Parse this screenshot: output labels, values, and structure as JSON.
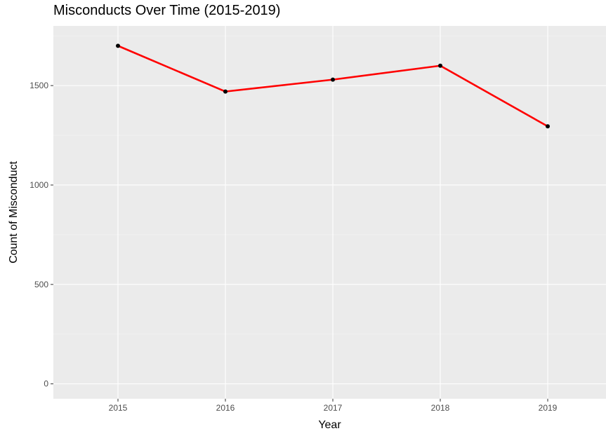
{
  "chart_data": {
    "type": "line",
    "title": "Misconducts Over Time (2015-2019)",
    "xlabel": "Year",
    "ylabel": "Count of Misconduct",
    "categories": [
      "2015",
      "2016",
      "2017",
      "2018",
      "2019"
    ],
    "series": [
      {
        "values": [
          1700,
          1470,
          1530,
          1600,
          1295
        ]
      }
    ],
    "ylim": [
      -75,
      1800
    ],
    "yticks": [
      0,
      500,
      1000,
      1500
    ],
    "grid": true,
    "colors": {
      "line": "#ff0000",
      "points": "#000000",
      "panel": "#ebebeb",
      "grid_major": "#ffffff",
      "grid_minor": "#f5f5f5"
    }
  }
}
